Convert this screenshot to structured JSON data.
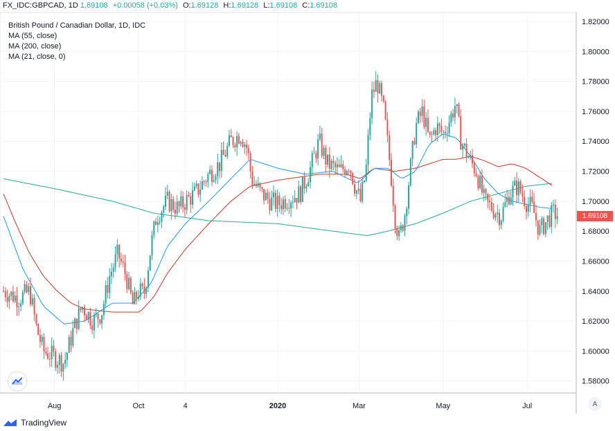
{
  "header": {
    "symbol": "FX_IDC:GBPCAD, 1D",
    "last": "1.69108",
    "change": "+0.00058 (+0.03%)",
    "o_label": "O:",
    "o_value": "1.69128",
    "h_label": "H:",
    "h_value": "1.69128",
    "l_label": "L:",
    "l_value": "1.69108",
    "c_label": "C:",
    "c_value": "1.69108"
  },
  "legend": {
    "title": "British Pound / Canadian Dollar, 1D, IDC",
    "ma1": "MA (55, close)",
    "ma2": "MA (200, close)",
    "ma3": "MA (21, close, 0)"
  },
  "price_label": "1.69108",
  "auto_label": "A",
  "brand": "TradingView",
  "colors": {
    "up": "#26a69a",
    "down": "#ef5350",
    "ma55": "#2196f3",
    "ma200": "#26a69a",
    "ma21": "#c0392b"
  },
  "chart_data": {
    "type": "candlestick",
    "y_ticks": [
      "1.82000",
      "1.80000",
      "1.78000",
      "1.76000",
      "1.74000",
      "1.72000",
      "1.70000",
      "1.68000",
      "1.66000",
      "1.64000",
      "1.62000",
      "1.60000",
      "1.58000"
    ],
    "ylim": [
      1.572,
      1.826
    ],
    "x_ticks": [
      {
        "label": "Aug",
        "day": 38
      },
      {
        "label": "Oct",
        "day": 99
      },
      {
        "label": "4",
        "day": 133
      },
      {
        "label": "2020",
        "day": 200
      },
      {
        "label": "Mar",
        "day": 259
      },
      {
        "label": "May",
        "day": 320
      },
      {
        "label": "Jul",
        "day": 381
      }
    ],
    "x_range": [
      1,
      403
    ],
    "close_anchors": [
      [
        1,
        1.64
      ],
      [
        12,
        1.635
      ],
      [
        20,
        1.64
      ],
      [
        25,
        1.615
      ],
      [
        30,
        1.6
      ],
      [
        38,
        1.596
      ],
      [
        45,
        1.592
      ],
      [
        52,
        1.615
      ],
      [
        58,
        1.63
      ],
      [
        66,
        1.62
      ],
      [
        72,
        1.625
      ],
      [
        78,
        1.65
      ],
      [
        84,
        1.665
      ],
      [
        90,
        1.65
      ],
      [
        95,
        1.63
      ],
      [
        99,
        1.64
      ],
      [
        103,
        1.638
      ],
      [
        108,
        1.67
      ],
      [
        112,
        1.69
      ],
      [
        120,
        1.7
      ],
      [
        128,
        1.695
      ],
      [
        133,
        1.7
      ],
      [
        140,
        1.705
      ],
      [
        150,
        1.718
      ],
      [
        158,
        1.725
      ],
      [
        166,
        1.74
      ],
      [
        173,
        1.745
      ],
      [
        178,
        1.735
      ],
      [
        181,
        1.715
      ],
      [
        188,
        1.705
      ],
      [
        195,
        1.7
      ],
      [
        200,
        1.698
      ],
      [
        208,
        1.702
      ],
      [
        216,
        1.705
      ],
      [
        223,
        1.72
      ],
      [
        230,
        1.74
      ],
      [
        236,
        1.725
      ],
      [
        245,
        1.72
      ],
      [
        252,
        1.725
      ],
      [
        256,
        1.71
      ],
      [
        260,
        1.7
      ],
      [
        264,
        1.72
      ],
      [
        268,
        1.77
      ],
      [
        272,
        1.78
      ],
      [
        277,
        1.76
      ],
      [
        282,
        1.72
      ],
      [
        285,
        1.69
      ],
      [
        288,
        1.675
      ],
      [
        292,
        1.69
      ],
      [
        296,
        1.72
      ],
      [
        300,
        1.75
      ],
      [
        305,
        1.76
      ],
      [
        310,
        1.74
      ],
      [
        315,
        1.75
      ],
      [
        320,
        1.745
      ],
      [
        325,
        1.755
      ],
      [
        329,
        1.765
      ],
      [
        333,
        1.74
      ],
      [
        338,
        1.73
      ],
      [
        344,
        1.72
      ],
      [
        350,
        1.7
      ],
      [
        356,
        1.695
      ],
      [
        362,
        1.69
      ],
      [
        368,
        1.705
      ],
      [
        374,
        1.71
      ],
      [
        380,
        1.7
      ],
      [
        385,
        1.695
      ],
      [
        390,
        1.68
      ],
      [
        396,
        1.688
      ],
      [
        400,
        1.692
      ],
      [
        403,
        1.691
      ]
    ],
    "ma55": [
      [
        1,
        1.69
      ],
      [
        15,
        1.655
      ],
      [
        30,
        1.63
      ],
      [
        45,
        1.618
      ],
      [
        60,
        1.62
      ],
      [
        80,
        1.632
      ],
      [
        95,
        1.632
      ],
      [
        108,
        1.645
      ],
      [
        120,
        1.67
      ],
      [
        133,
        1.685
      ],
      [
        150,
        1.7
      ],
      [
        166,
        1.715
      ],
      [
        180,
        1.728
      ],
      [
        200,
        1.722
      ],
      [
        220,
        1.718
      ],
      [
        240,
        1.72
      ],
      [
        258,
        1.712
      ],
      [
        270,
        1.722
      ],
      [
        280,
        1.722
      ],
      [
        290,
        1.715
      ],
      [
        300,
        1.72
      ],
      [
        310,
        1.738
      ],
      [
        320,
        1.745
      ],
      [
        330,
        1.742
      ],
      [
        340,
        1.73
      ],
      [
        350,
        1.715
      ],
      [
        360,
        1.705
      ],
      [
        370,
        1.7
      ],
      [
        380,
        1.698
      ],
      [
        390,
        1.696
      ],
      [
        400,
        1.695
      ]
    ],
    "ma21": [
      [
        1,
        1.705
      ],
      [
        10,
        1.685
      ],
      [
        20,
        1.665
      ],
      [
        30,
        1.65
      ],
      [
        40,
        1.64
      ],
      [
        50,
        1.632
      ],
      [
        60,
        1.628
      ],
      [
        80,
        1.626
      ],
      [
        100,
        1.626
      ],
      [
        110,
        1.636
      ],
      [
        120,
        1.652
      ],
      [
        133,
        1.668
      ],
      [
        150,
        1.685
      ],
      [
        166,
        1.7
      ],
      [
        180,
        1.71
      ],
      [
        200,
        1.714
      ],
      [
        230,
        1.718
      ],
      [
        250,
        1.718
      ],
      [
        260,
        1.715
      ],
      [
        270,
        1.722
      ],
      [
        285,
        1.72
      ],
      [
        300,
        1.722
      ],
      [
        310,
        1.725
      ],
      [
        320,
        1.728
      ],
      [
        330,
        1.728
      ],
      [
        340,
        1.73
      ],
      [
        350,
        1.727
      ],
      [
        360,
        1.723
      ],
      [
        370,
        1.725
      ],
      [
        380,
        1.722
      ],
      [
        390,
        1.716
      ],
      [
        400,
        1.71
      ]
    ],
    "ma200": [
      [
        1,
        1.715
      ],
      [
        40,
        1.708
      ],
      [
        80,
        1.7
      ],
      [
        110,
        1.692
      ],
      [
        150,
        1.687
      ],
      [
        200,
        1.685
      ],
      [
        240,
        1.68
      ],
      [
        265,
        1.677
      ],
      [
        280,
        1.68
      ],
      [
        300,
        1.685
      ],
      [
        320,
        1.692
      ],
      [
        340,
        1.7
      ],
      [
        360,
        1.705
      ],
      [
        380,
        1.71
      ],
      [
        400,
        1.712
      ]
    ]
  }
}
